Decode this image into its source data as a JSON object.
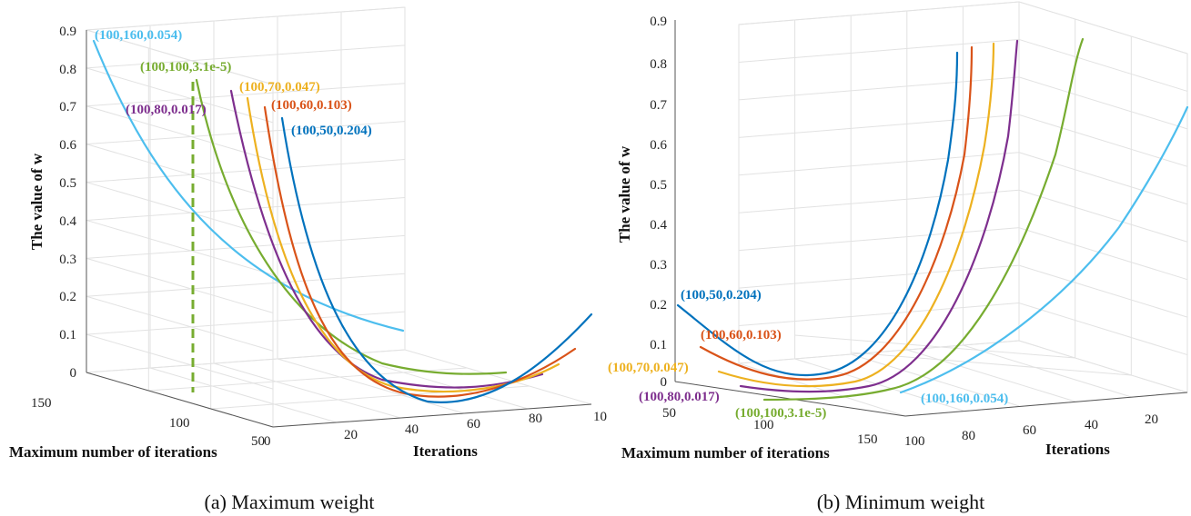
{
  "chart_data": [
    {
      "type": "line",
      "panel": "a",
      "caption": "(a) Maximum weight",
      "zlabel": "The value of w",
      "xlabel": "Iterations",
      "ylabel": "Maximum number of iterations",
      "zlim": [
        0,
        0.9
      ],
      "z_ticks": [
        "0",
        "0.1",
        "0.2",
        "0.3",
        "0.4",
        "0.5",
        "0.6",
        "0.7",
        "0.8",
        "0.9"
      ],
      "iter_ticks": [
        "0",
        "20",
        "40",
        "60",
        "80",
        "10"
      ],
      "max_iter_ticks": [
        "150",
        "100",
        "50"
      ],
      "grid": true,
      "series": [
        {
          "name": "(100,160,0.054)",
          "color": "#4dbeee",
          "x": [
            0,
            25,
            50,
            75,
            100
          ],
          "y": [
            0.88,
            0.52,
            0.3,
            0.17,
            0.1
          ]
        },
        {
          "name": "(100,100,3.1e-5)",
          "color": "#77ac30",
          "x": [
            0,
            25,
            50,
            75,
            100
          ],
          "y": [
            0.78,
            0.38,
            0.12,
            0.02,
            0.0
          ]
        },
        {
          "name": "(100,80,0.017)",
          "color": "#7e2f8e",
          "x": [
            0,
            25,
            50,
            75,
            100
          ],
          "y": [
            0.72,
            0.3,
            0.06,
            0.0,
            0.02
          ]
        },
        {
          "name": "(100,70,0.047)",
          "color": "#edb120",
          "x": [
            0,
            25,
            50,
            75,
            100
          ],
          "y": [
            0.7,
            0.26,
            0.04,
            0.0,
            0.05
          ]
        },
        {
          "name": "(100,60,0.103)",
          "color": "#d95319",
          "x": [
            0,
            25,
            50,
            75,
            100
          ],
          "y": [
            0.68,
            0.22,
            0.0,
            0.0,
            0.1
          ]
        },
        {
          "name": "(100,50,0.204)",
          "color": "#0072bd",
          "x": [
            0,
            25,
            50,
            75,
            100
          ],
          "y": [
            0.64,
            0.14,
            0.0,
            0.05,
            0.2
          ]
        }
      ],
      "marker": {
        "style": "dashed vertical line",
        "color": "#77ac30",
        "z": 0.78
      }
    },
    {
      "type": "line",
      "panel": "b",
      "caption": "(b) Minimum weight",
      "zlabel": "The value of w",
      "xlabel": "Iterations",
      "ylabel": "Maximum number of iterations",
      "zlim": [
        0,
        0.9
      ],
      "z_ticks": [
        "0",
        "0.1",
        "0.2",
        "0.3",
        "0.4",
        "0.5",
        "0.6",
        "0.7",
        "0.8",
        "0.9"
      ],
      "iter_ticks": [
        "100",
        "80",
        "60",
        "40",
        "20"
      ],
      "max_iter_ticks": [
        "50",
        "100",
        "150"
      ],
      "grid": true,
      "series": [
        {
          "name": "(100,50,0.204)",
          "color": "#0072bd",
          "x": [
            0,
            25,
            50,
            75,
            100
          ],
          "y": [
            0.2,
            0.02,
            0.02,
            0.35,
            0.85
          ]
        },
        {
          "name": "(100,60,0.103)",
          "color": "#d95319",
          "x": [
            0,
            25,
            50,
            75,
            100
          ],
          "y": [
            0.1,
            0.01,
            0.04,
            0.4,
            0.88
          ]
        },
        {
          "name": "(100,70,0.047)",
          "color": "#edb120",
          "x": [
            0,
            25,
            50,
            75,
            100
          ],
          "y": [
            0.05,
            0.0,
            0.06,
            0.44,
            0.9
          ]
        },
        {
          "name": "(100,80,0.017)",
          "color": "#7e2f8e",
          "x": [
            0,
            25,
            50,
            75,
            100
          ],
          "y": [
            0.02,
            0.0,
            0.08,
            0.48,
            0.92
          ]
        },
        {
          "name": "(100,100,3.1e-5)",
          "color": "#77ac30",
          "x": [
            0,
            25,
            50,
            75,
            100
          ],
          "y": [
            0.0,
            0.0,
            0.1,
            0.5,
            0.95
          ]
        },
        {
          "name": "(100,160,0.054)",
          "color": "#4dbeee",
          "x": [
            0,
            25,
            50,
            75,
            100
          ],
          "y": [
            0.0,
            0.05,
            0.2,
            0.45,
            0.8
          ]
        }
      ]
    }
  ]
}
